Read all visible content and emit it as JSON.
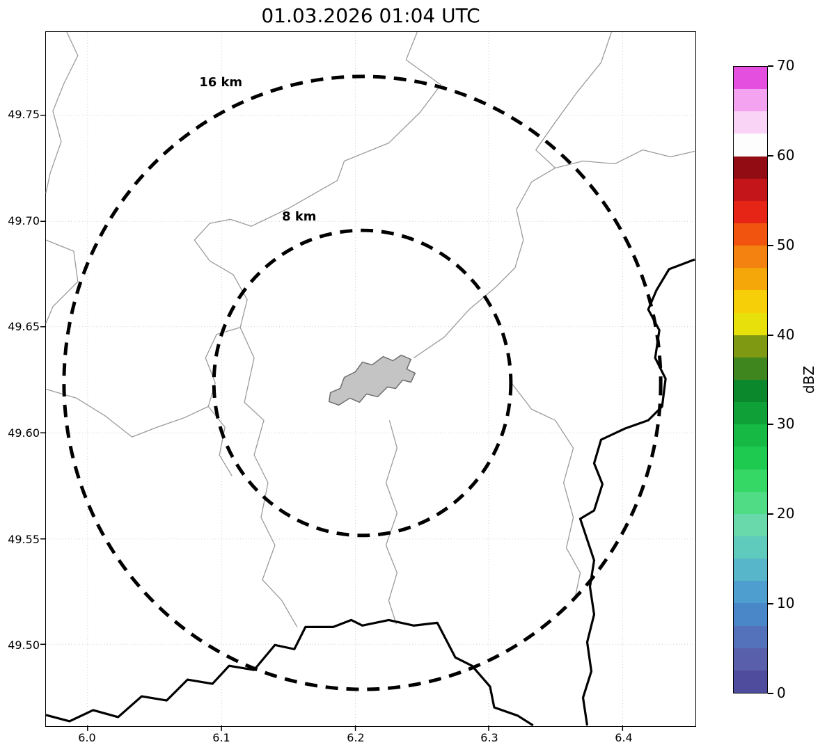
{
  "title": "01.03.2026 01:04 UTC",
  "map": {
    "ring_labels": [
      "16 km",
      "8 km"
    ],
    "lon_ticks": [
      "6.0",
      "6.1",
      "6.2",
      "6.3",
      "6.4"
    ],
    "lat_ticks": [
      "49.75",
      "49.70",
      "49.65",
      "49.60",
      "49.55",
      "49.50"
    ]
  },
  "colorbar": {
    "label": "dBZ",
    "ticks": [
      "70",
      "60",
      "50",
      "40",
      "30",
      "20",
      "10",
      "0"
    ],
    "colors_bottom_to_top": [
      "#4f4c9e",
      "#5a5fac",
      "#5372bb",
      "#4a87c8",
      "#4f9ed0",
      "#57b6c9",
      "#5fcbbd",
      "#69d9ab",
      "#50db85",
      "#35d765",
      "#1fca50",
      "#15b944",
      "#10a038",
      "#0c882c",
      "#3f861f",
      "#7f9a12",
      "#e8e00b",
      "#f6cf08",
      "#f5a609",
      "#f38210",
      "#f0540f",
      "#e62517",
      "#c4161a",
      "#920d13",
      "#fdfdfd",
      "#f9d4f6",
      "#f3a3ef",
      "#e54fdf"
    ]
  },
  "chart_data": {
    "type": "heatmap",
    "title": "01.03.2026 01:04 UTC",
    "description": "Weather radar reflectivity (dBZ) map view; no precipitation echoes visible at this timestamp",
    "x_axis": {
      "ticks": [
        6.0,
        6.1,
        6.2,
        6.3,
        6.4
      ],
      "range": [
        5.969,
        6.453
      ]
    },
    "y_axis": {
      "ticks": [
        49.5,
        49.55,
        49.6,
        49.65,
        49.7,
        49.75
      ],
      "range": [
        49.462,
        49.789
      ]
    },
    "colorbar": {
      "label": "dBZ",
      "min": 0,
      "max": 70,
      "ticks": [
        0,
        10,
        20,
        30,
        40,
        50,
        60,
        70
      ],
      "band_step": 2.5
    },
    "range_rings": [
      {
        "label": "8 km",
        "radius_km": 8
      },
      {
        "label": "16 km",
        "radius_km": 16
      }
    ],
    "ring_center": {
      "lon": 6.205,
      "lat": 49.623
    },
    "grid": true,
    "legend_position": "right colorbar",
    "map_features": [
      "thick black national border lines (bottom and right)",
      "thin gray river and administrative boundary lines",
      "gray filled city boundary polygon near ring center"
    ],
    "reflectivity_echoes": []
  }
}
